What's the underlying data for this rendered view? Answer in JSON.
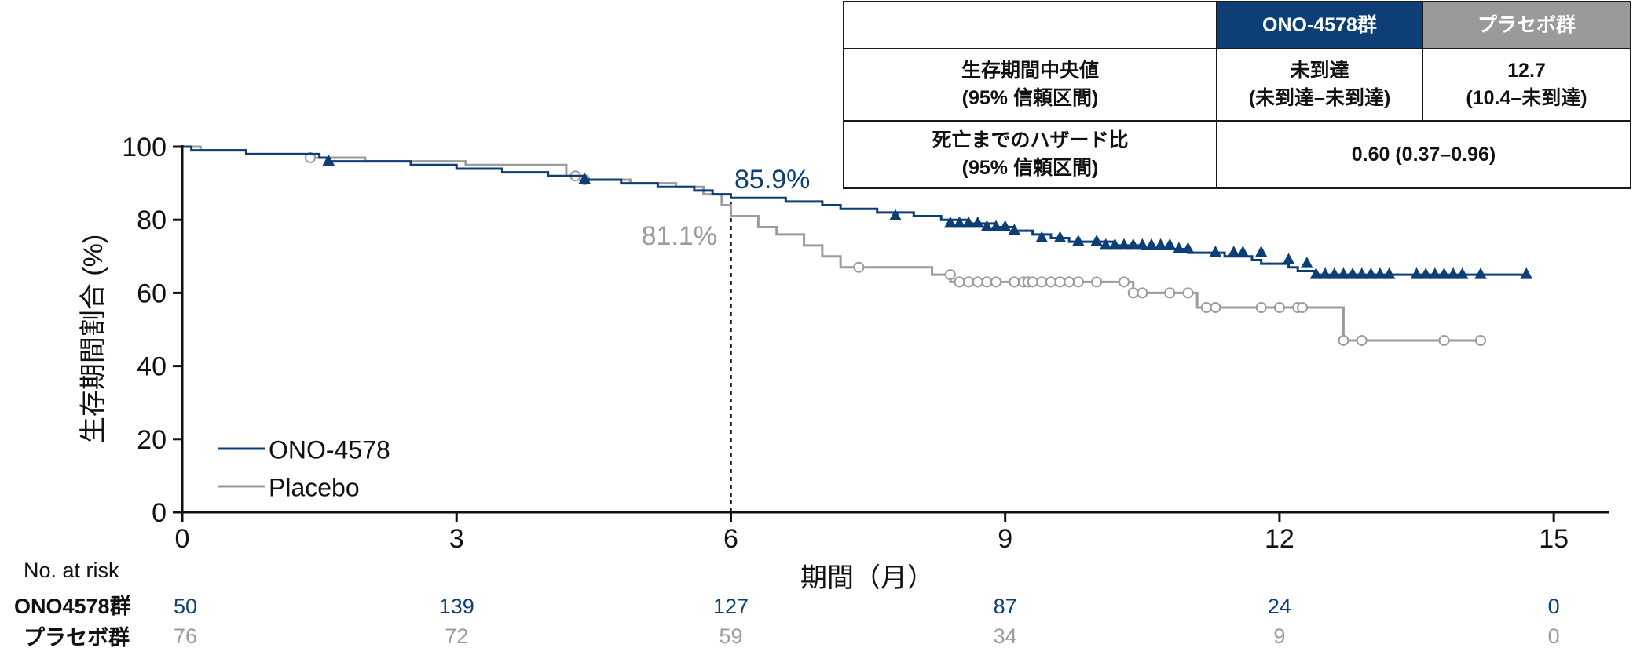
{
  "chart_data": {
    "type": "line",
    "subtype": "kaplan-meier step",
    "ylabel": "生存期間割合 (%)",
    "xlabel": "期間（月）",
    "xlim": [
      0,
      15.6
    ],
    "ylim": [
      0,
      100
    ],
    "xticks": [
      0,
      3,
      6,
      9,
      12,
      15
    ],
    "yticks": [
      0,
      20,
      40,
      60,
      80,
      100
    ],
    "grid": false,
    "legend_position": "bottom-left",
    "colors": {
      "ono": "#0d3f76",
      "placebo": "#9b9b9b",
      "text": "#111111"
    },
    "series": [
      {
        "name": "ONO-4578",
        "marker": "filled-triangle",
        "steps": [
          [
            0,
            100
          ],
          [
            0.1,
            99
          ],
          [
            0.7,
            98
          ],
          [
            1.5,
            97
          ],
          [
            1.6,
            96
          ],
          [
            2.5,
            95
          ],
          [
            3.0,
            94
          ],
          [
            3.5,
            93
          ],
          [
            4.0,
            92
          ],
          [
            4.4,
            91
          ],
          [
            4.8,
            90
          ],
          [
            5.2,
            89
          ],
          [
            5.6,
            88
          ],
          [
            5.8,
            87
          ],
          [
            6.0,
            86
          ],
          [
            6.6,
            85
          ],
          [
            7.0,
            84
          ],
          [
            7.2,
            83
          ],
          [
            7.6,
            82
          ],
          [
            8.0,
            81
          ],
          [
            8.3,
            80
          ],
          [
            8.6,
            79
          ],
          [
            8.9,
            78
          ],
          [
            9.1,
            77
          ],
          [
            9.3,
            76
          ],
          [
            9.5,
            75
          ],
          [
            9.7,
            74
          ],
          [
            10.2,
            73
          ],
          [
            10.5,
            72
          ],
          [
            11.0,
            71
          ],
          [
            11.4,
            70
          ],
          [
            11.7,
            69
          ],
          [
            11.8,
            68
          ],
          [
            12.1,
            67
          ],
          [
            12.2,
            66
          ],
          [
            12.4,
            65
          ],
          [
            14.7,
            65
          ]
        ],
        "censored": [
          [
            1.6,
            96
          ],
          [
            4.4,
            91
          ],
          [
            7.8,
            81
          ],
          [
            8.4,
            79
          ],
          [
            8.5,
            79
          ],
          [
            8.6,
            79
          ],
          [
            8.7,
            79
          ],
          [
            8.8,
            78
          ],
          [
            8.9,
            78
          ],
          [
            9.0,
            78
          ],
          [
            9.1,
            77
          ],
          [
            9.4,
            75
          ],
          [
            9.6,
            75
          ],
          [
            9.8,
            74
          ],
          [
            10.0,
            74
          ],
          [
            10.1,
            73
          ],
          [
            10.2,
            73
          ],
          [
            10.3,
            73
          ],
          [
            10.4,
            73
          ],
          [
            10.5,
            73
          ],
          [
            10.6,
            73
          ],
          [
            10.7,
            73
          ],
          [
            10.8,
            73
          ],
          [
            10.9,
            72
          ],
          [
            11.0,
            72
          ],
          [
            11.3,
            71
          ],
          [
            11.5,
            71
          ],
          [
            11.6,
            71
          ],
          [
            11.8,
            71
          ],
          [
            12.1,
            69
          ],
          [
            12.3,
            68
          ],
          [
            12.4,
            65
          ],
          [
            12.5,
            65
          ],
          [
            12.6,
            65
          ],
          [
            12.7,
            65
          ],
          [
            12.8,
            65
          ],
          [
            12.9,
            65
          ],
          [
            13.0,
            65
          ],
          [
            13.1,
            65
          ],
          [
            13.2,
            65
          ],
          [
            13.5,
            65
          ],
          [
            13.6,
            65
          ],
          [
            13.7,
            65
          ],
          [
            13.8,
            65
          ],
          [
            13.9,
            65
          ],
          [
            14.0,
            65
          ],
          [
            14.2,
            65
          ],
          [
            14.7,
            65
          ]
        ]
      },
      {
        "name": "Placebo",
        "marker": "open-circle",
        "steps": [
          [
            0,
            100
          ],
          [
            0.2,
            99
          ],
          [
            0.7,
            98
          ],
          [
            1.4,
            97
          ],
          [
            2.0,
            96
          ],
          [
            3.1,
            95
          ],
          [
            4.2,
            92
          ],
          [
            4.4,
            91
          ],
          [
            4.9,
            90
          ],
          [
            5.4,
            89
          ],
          [
            5.7,
            87
          ],
          [
            5.9,
            84
          ],
          [
            6.0,
            81
          ],
          [
            6.3,
            78
          ],
          [
            6.5,
            76
          ],
          [
            6.8,
            73
          ],
          [
            7.0,
            70
          ],
          [
            7.2,
            67
          ],
          [
            8.2,
            65
          ],
          [
            8.4,
            63
          ],
          [
            10.4,
            60
          ],
          [
            11.1,
            56
          ],
          [
            12.7,
            47
          ],
          [
            14.2,
            47
          ]
        ],
        "censored": [
          [
            1.4,
            97
          ],
          [
            4.3,
            92
          ],
          [
            4.4,
            91
          ],
          [
            7.4,
            67
          ],
          [
            8.4,
            65
          ],
          [
            8.5,
            63
          ],
          [
            8.6,
            63
          ],
          [
            8.7,
            63
          ],
          [
            8.8,
            63
          ],
          [
            8.9,
            63
          ],
          [
            9.1,
            63
          ],
          [
            9.2,
            63
          ],
          [
            9.25,
            63
          ],
          [
            9.3,
            63
          ],
          [
            9.4,
            63
          ],
          [
            9.5,
            63
          ],
          [
            9.6,
            63
          ],
          [
            9.7,
            63
          ],
          [
            9.8,
            63
          ],
          [
            10.0,
            63
          ],
          [
            10.3,
            63
          ],
          [
            10.4,
            60
          ],
          [
            10.5,
            60
          ],
          [
            10.8,
            60
          ],
          [
            11.0,
            60
          ],
          [
            11.2,
            56
          ],
          [
            11.3,
            56
          ],
          [
            11.8,
            56
          ],
          [
            12.0,
            56
          ],
          [
            12.2,
            56
          ],
          [
            12.25,
            56
          ],
          [
            12.7,
            47
          ],
          [
            12.9,
            47
          ],
          [
            13.8,
            47
          ],
          [
            14.2,
            47
          ]
        ]
      }
    ],
    "reference_line": {
      "x": 6
    },
    "annotations": [
      {
        "text": "85.9%",
        "series": "ONO-4578"
      },
      {
        "text": "81.1%",
        "series": "Placebo"
      }
    ],
    "risk_table": {
      "title": "No. at risk",
      "rows": [
        {
          "label": "ONO4578群",
          "values": [
            "50",
            "139",
            "127",
            "87",
            "24",
            "0"
          ]
        },
        {
          "label": "プラセボ群",
          "values": [
            "76",
            "72",
            "59",
            "34",
            "9",
            "0"
          ]
        }
      ]
    }
  },
  "stats_table": {
    "header_ono": "ONO-4578群",
    "header_placebo": "プラセボ群",
    "row1_label_line1": "生存期間中央値",
    "row1_label_line2": "(95% 信頼区間)",
    "row1_ono_line1": "未到達",
    "row1_ono_line2": "(未到達–未到達)",
    "row1_placebo_line1": "12.7",
    "row1_placebo_line2": "(10.4–未到達)",
    "row2_label_line1": "死亡までのハザード比",
    "row2_label_line2": "(95% 信頼区間)",
    "row2_value": "0.60 (0.37–0.96)"
  }
}
